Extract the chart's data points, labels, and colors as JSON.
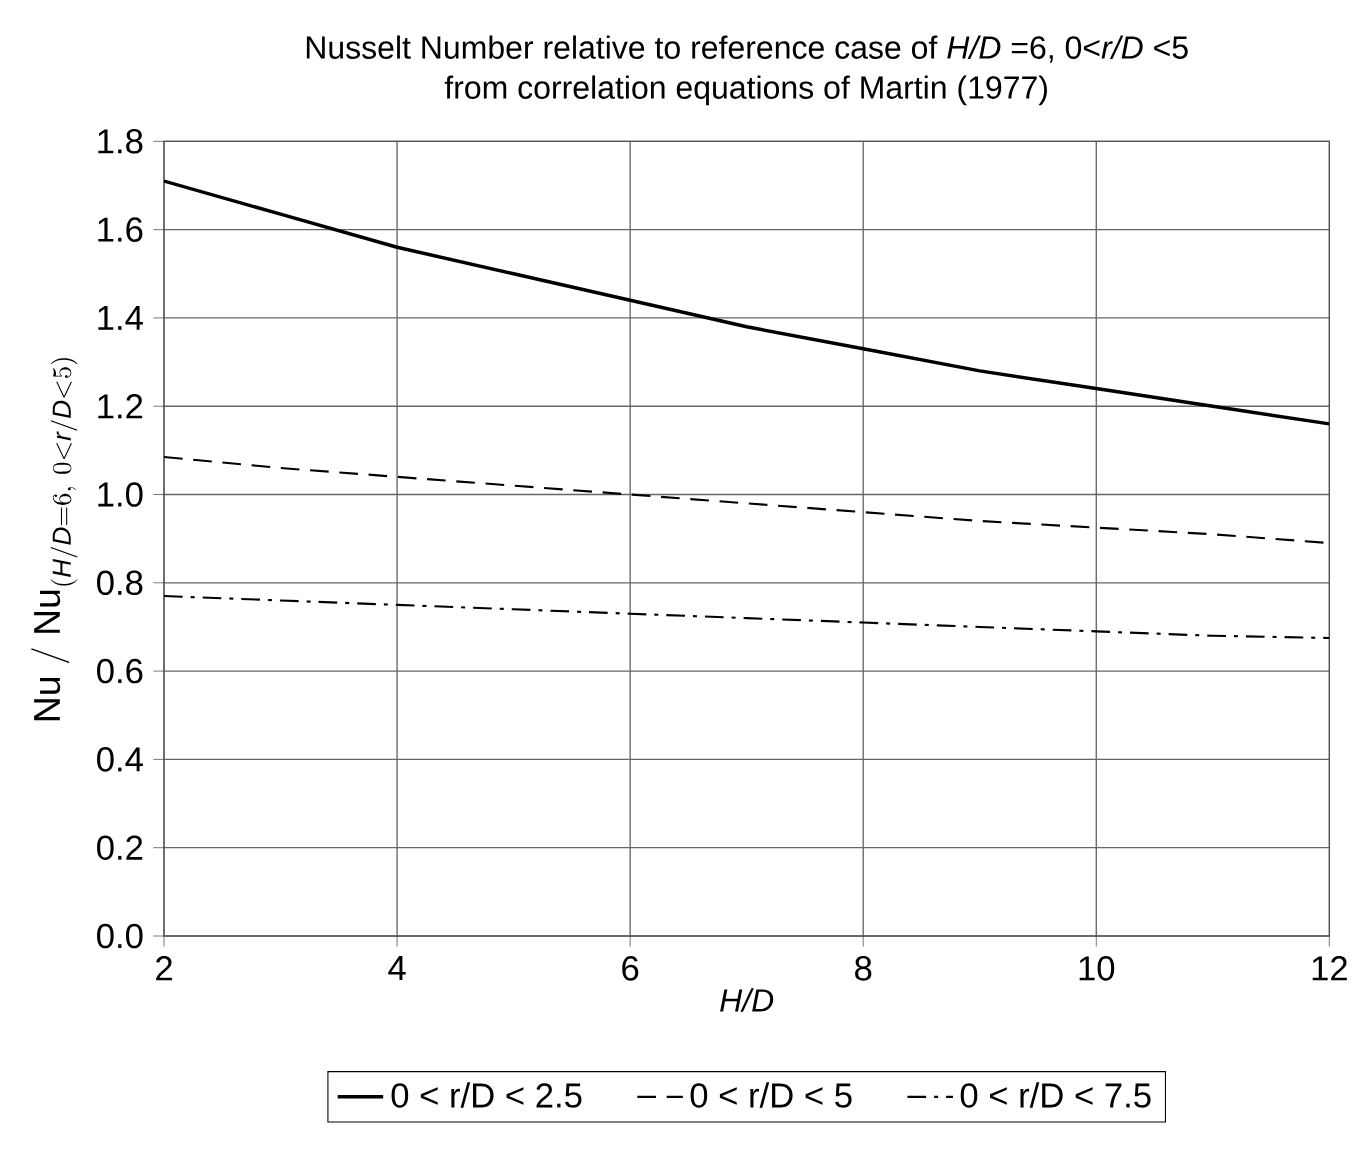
{
  "chart_data": {
    "type": "line",
    "title": "Nusselt Number relative to reference case of *H/D* =6, 0<*r/D* <5\nfrom correlation equations of Martin (1977)",
    "xlabel": "H/D",
    "ylabel": "\\mathrm{Nu\\ /\\ Nu}_{(\\mathit{H/D}=6,\\ 0<\\mathit{r/D}<5)}",
    "x": [
      2,
      3,
      4,
      5,
      6,
      7,
      8,
      9,
      10,
      11,
      12
    ],
    "series": [
      {
        "name": "0 < r/D < 2.5",
        "color": "#000000",
        "line_style": "solid",
        "values": [
          1.71,
          1.635,
          1.56,
          1.5,
          1.44,
          1.38,
          1.33,
          1.28,
          1.24,
          1.2,
          1.16
        ]
      },
      {
        "name": "0 < r/D < 5",
        "color": "#000000",
        "line_style": "dashed",
        "values": [
          1.085,
          1.06,
          1.04,
          1.02,
          1.0,
          0.98,
          0.96,
          0.94,
          0.925,
          0.91,
          0.89
        ]
      },
      {
        "name": "0 < r/D < 7.5",
        "color": "#000000",
        "line_style": "dashdot",
        "values": [
          0.77,
          0.76,
          0.75,
          0.74,
          0.73,
          0.72,
          0.71,
          0.7,
          0.69,
          0.68,
          0.675
        ]
      }
    ],
    "xlim": [
      2,
      12
    ],
    "xticks": [
      2,
      4,
      6,
      8,
      10,
      12
    ],
    "ylim": [
      0.0,
      1.8
    ],
    "yticks": [
      {
        "value": 0,
        "label": "0.0"
      },
      {
        "value": 0.2,
        "label": "0.2"
      },
      {
        "value": 0.4,
        "label": "0.4"
      },
      {
        "value": 0.6,
        "label": "0.6"
      },
      {
        "value": 0.8,
        "label": "0.8"
      },
      {
        "value": 1.0,
        "label": "1.0"
      },
      {
        "value": 1.2,
        "label": "1.2"
      },
      {
        "value": 1.4,
        "label": "1.4"
      },
      {
        "value": 1.6,
        "label": "1.6"
      },
      {
        "value": 1.8,
        "label": "1.8"
      }
    ],
    "grid": true,
    "legend": "bottom",
    "marker": "none"
  }
}
